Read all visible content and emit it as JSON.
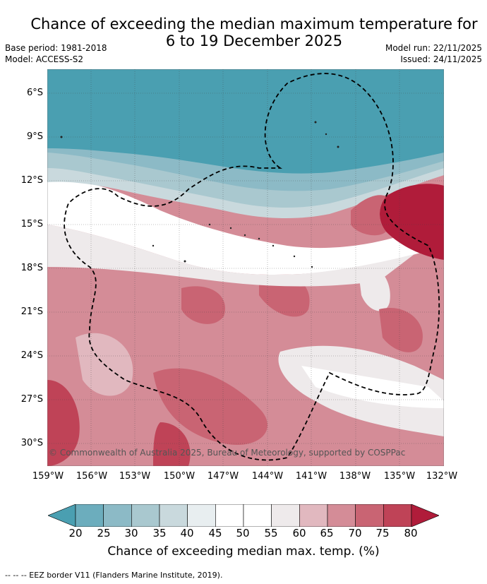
{
  "title_line1": "Chance of exceeding the median maximum temperature for",
  "title_line2": "6 to 19 December 2025",
  "base_period": "Base period: 1981-2018",
  "model": "Model: ACCESS-S2",
  "model_run": "Model run: 22/11/2025",
  "issued": "Issued: 24/11/2025",
  "lat_labels": [
    "6°S",
    "9°S",
    "12°S",
    "15°S",
    "18°S",
    "21°S",
    "24°S",
    "27°S",
    "30°S"
  ],
  "lon_labels": [
    "159°W",
    "156°W",
    "153°W",
    "150°W",
    "147°W",
    "144°W",
    "141°W",
    "138°W",
    "135°W",
    "132°W"
  ],
  "copyright": "© Commonwealth of Australia 2025, Bureau of Meteorology, supported by COSPPac",
  "colorbar": {
    "ticks": [
      "20",
      "25",
      "30",
      "35",
      "40",
      "45",
      "50",
      "55",
      "60",
      "65",
      "70",
      "75",
      "80"
    ],
    "label": "Chance of exceeding median max. temp. (%)",
    "colors": [
      "#4a9fb1",
      "#6cadbd",
      "#8cbac6",
      "#a9c8cf",
      "#c9d9dd",
      "#e8eef0",
      "#ffffff",
      "#ffffff",
      "#eeeaeb",
      "#e1b8bf",
      "#d48c97",
      "#c96473",
      "#bf4357",
      "#b01c3a"
    ]
  },
  "legend_footer": "--  --  -- EEZ border V11 (Flanders Marine Institute, 2019)."
}
